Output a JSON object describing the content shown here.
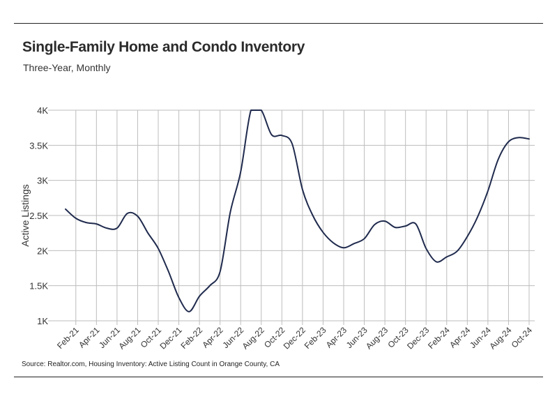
{
  "header": {
    "title": "Single-Family Home and Condo Inventory",
    "subtitle": "Three-Year, Monthly"
  },
  "footer": {
    "source": "Source: Realtor.com, Housing Inventory: Active Listing Count in Orange County, CA"
  },
  "colors": {
    "line": "#1f2a4d",
    "grid": "#bdbdbd",
    "rule": "#222222"
  },
  "chart_data": {
    "type": "line",
    "title": "Single-Family Home and Condo Inventory",
    "subtitle": "Three-Year, Monthly",
    "xlabel": "",
    "ylabel": "Active Listings",
    "ylim": [
      1000,
      4000
    ],
    "y_ticks": [
      1000,
      1500,
      2000,
      2500,
      3000,
      3500,
      4000
    ],
    "y_tick_labels": [
      "1K",
      "1.5K",
      "2K",
      "2.5K",
      "3K",
      "3.5K",
      "4K"
    ],
    "x_tick_labels": [
      "Feb-21",
      "Apr-21",
      "Jun-21",
      "Aug-21",
      "Oct-21",
      "Dec-21",
      "Feb-22",
      "Apr-22",
      "Jun-22",
      "Aug-22",
      "Oct-22",
      "Dec-22",
      "Feb-23",
      "Apr-23",
      "Jun-23",
      "Aug-23",
      "Oct-23",
      "Dec-23",
      "Feb-24",
      "Apr-24",
      "Jun-24",
      "Aug-24",
      "Oct-24"
    ],
    "grid": true,
    "legend": "none",
    "x": [
      "Jan-21",
      "Feb-21",
      "Mar-21",
      "Apr-21",
      "May-21",
      "Jun-21",
      "Jul-21",
      "Aug-21",
      "Sep-21",
      "Oct-21",
      "Nov-21",
      "Dec-21",
      "Jan-22",
      "Feb-22",
      "Mar-22",
      "Apr-22",
      "May-22",
      "Jun-22",
      "Jul-22",
      "Aug-22",
      "Sep-22",
      "Oct-22",
      "Nov-22",
      "Dec-22",
      "Jan-23",
      "Feb-23",
      "Mar-23",
      "Apr-23",
      "May-23",
      "Jun-23",
      "Jul-23",
      "Aug-23",
      "Sep-23",
      "Oct-23",
      "Nov-23",
      "Dec-23",
      "Jan-24",
      "Feb-24",
      "Mar-24",
      "Apr-24",
      "May-24",
      "Jun-24",
      "Jul-24",
      "Aug-24",
      "Sep-24",
      "Oct-24"
    ],
    "series": [
      {
        "values": [
          2590,
          2460,
          2400,
          2380,
          2320,
          2320,
          2530,
          2490,
          2250,
          2030,
          1700,
          1330,
          1130,
          1350,
          1500,
          1700,
          2550,
          3120,
          4000,
          4000,
          3650,
          3640,
          3520,
          2870,
          2500,
          2260,
          2110,
          2040,
          2100,
          2170,
          2370,
          2420,
          2330,
          2350,
          2380,
          2030,
          1840,
          1910,
          1990,
          2200,
          2480,
          2850,
          3300,
          3550,
          3610,
          3590
        ]
      }
    ]
  }
}
